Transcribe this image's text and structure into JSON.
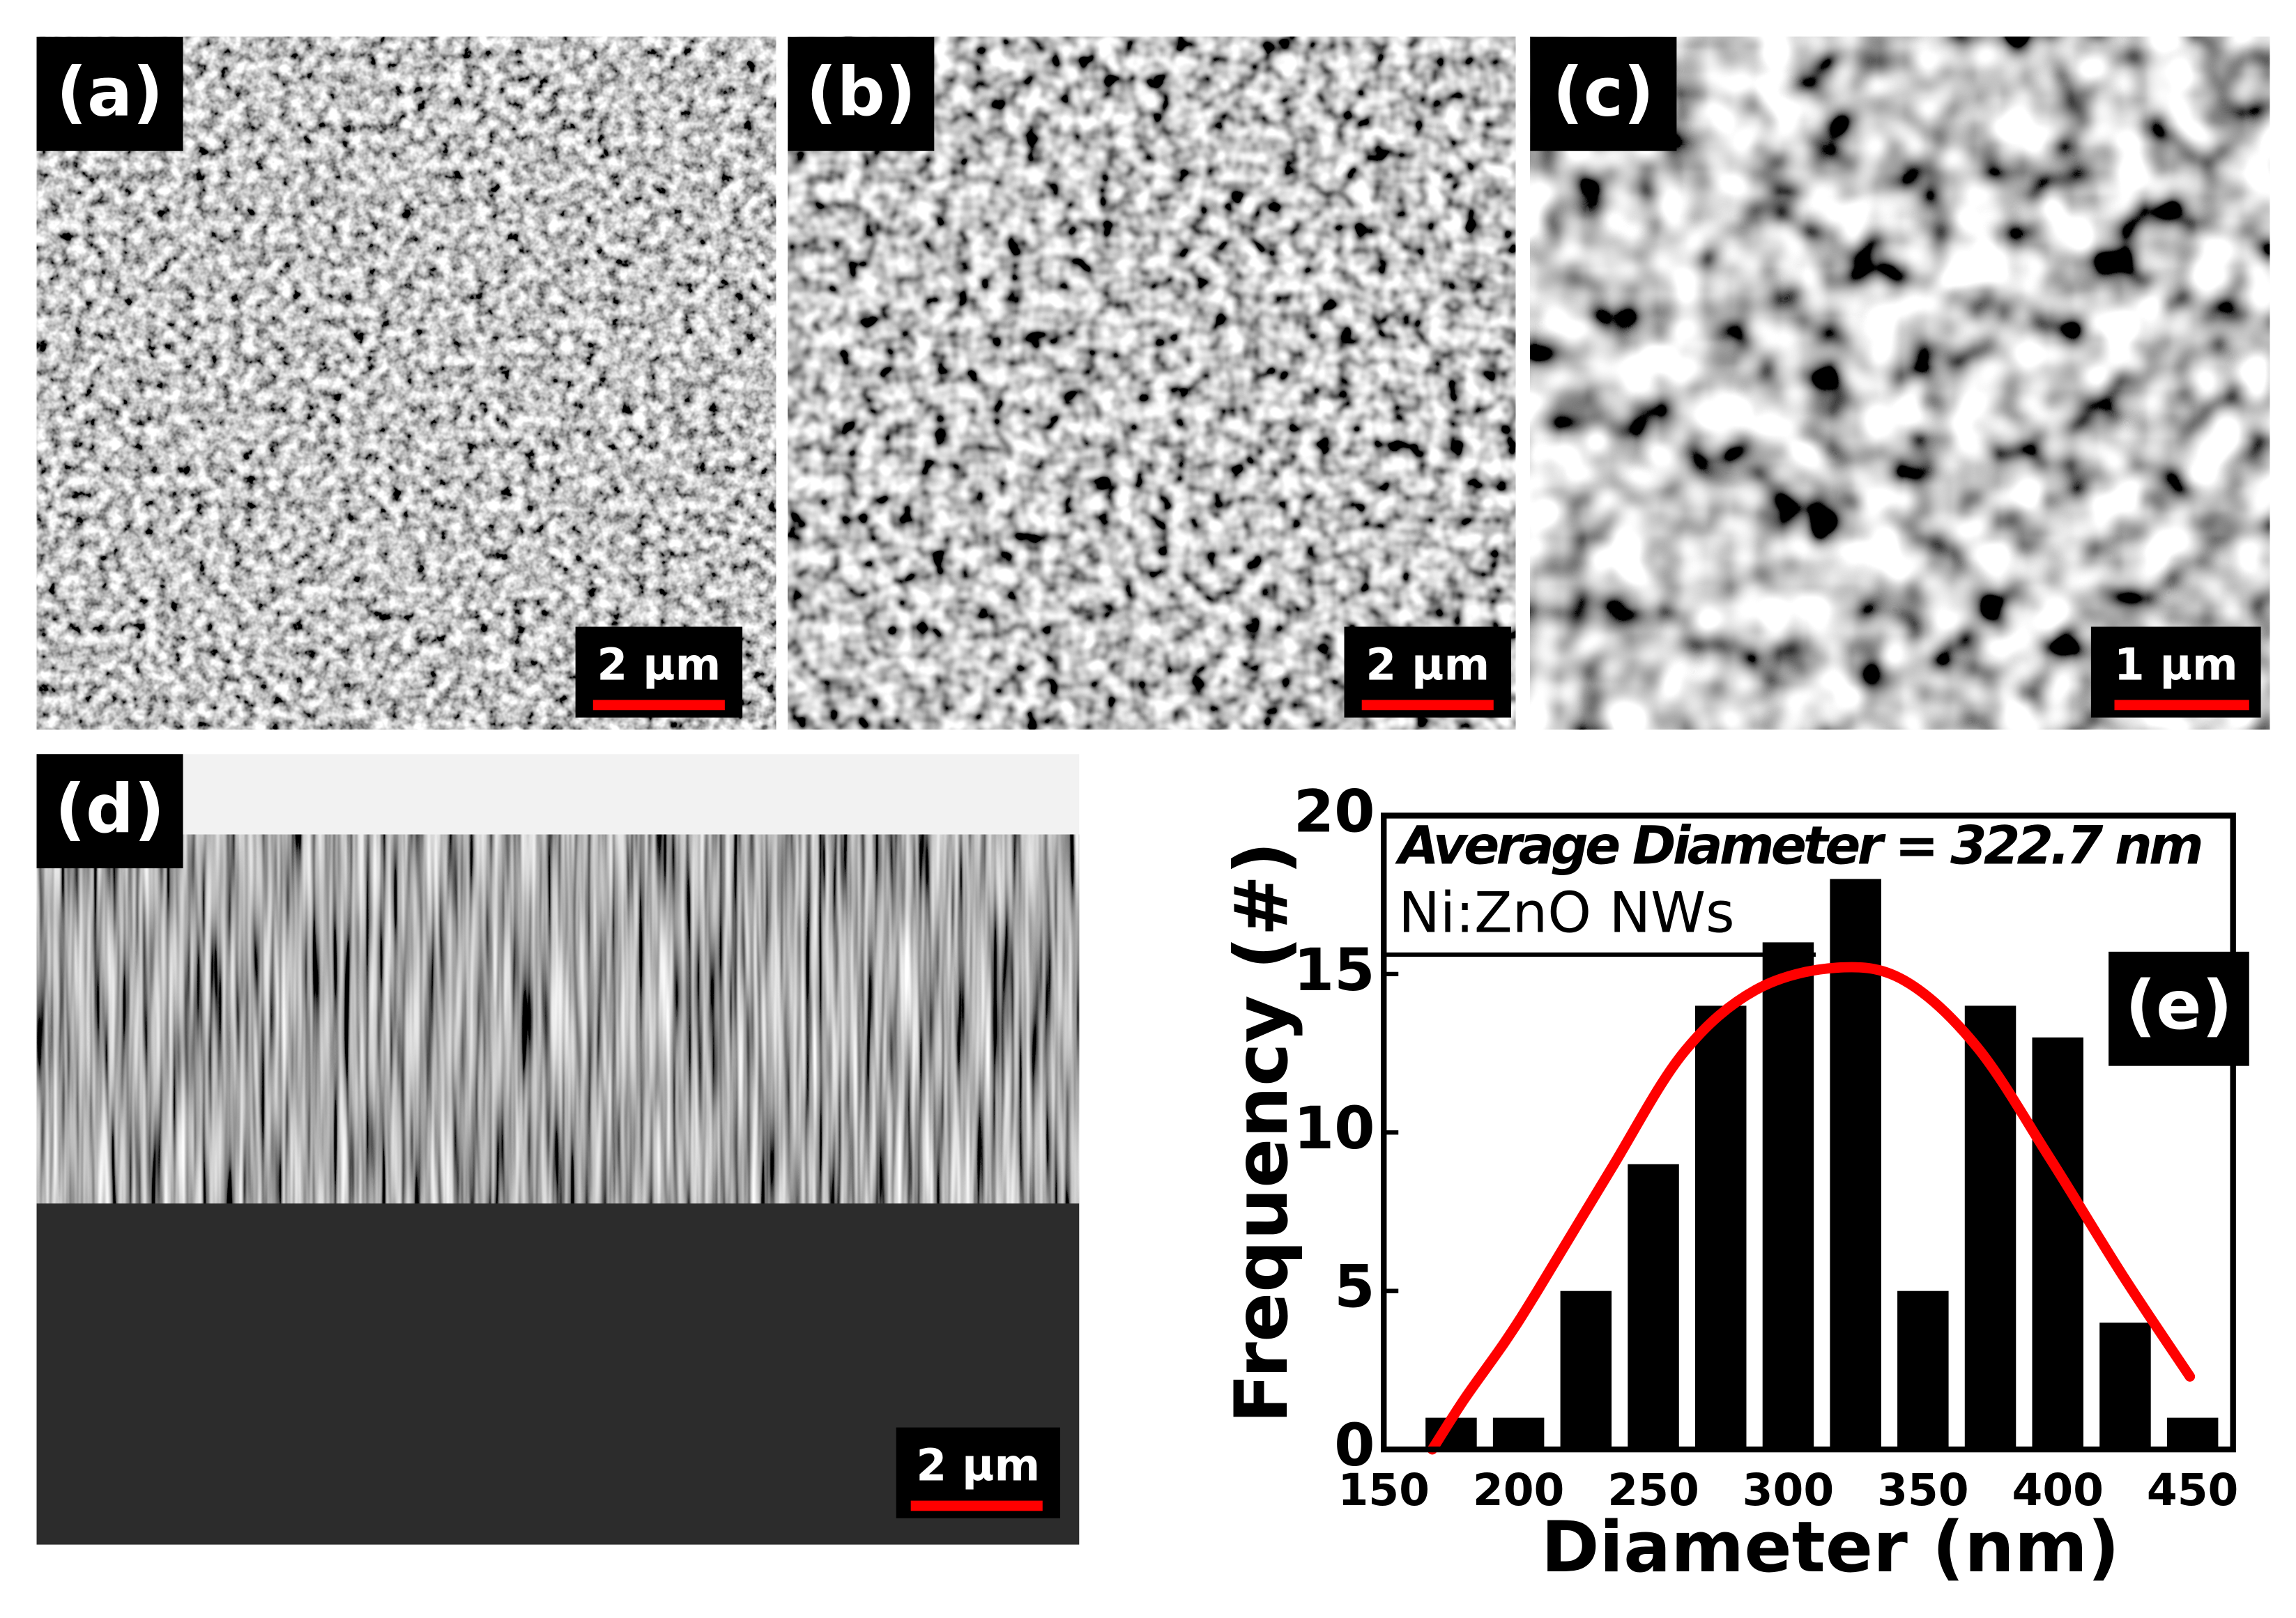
{
  "panels": [
    {
      "label": "(a)",
      "scale_bar": "2 µm"
    },
    {
      "label": "(b)",
      "scale_bar": "2 µm"
    },
    {
      "label": "(c)",
      "scale_bar": "1 µm"
    },
    {
      "label": "(d)",
      "scale_bar": "2 µm"
    }
  ],
  "chart_data": {
    "type": "bar",
    "label": "(e)",
    "x_label": "Diameter (nm)",
    "y_label": "Frequency (#)",
    "annotations": [
      "Average Diameter = 322.7 nm",
      "Ni:ZnO NWs"
    ],
    "x": [
      175,
      200,
      225,
      250,
      275,
      300,
      325,
      350,
      375,
      400,
      425,
      450
    ],
    "values": [
      1,
      1,
      5,
      9,
      14,
      16,
      18,
      5,
      14,
      13,
      4,
      1
    ],
    "color": "#000000",
    "fit": {
      "color": "#ff0000",
      "x": [
        168,
        180,
        195,
        207,
        234,
        261,
        288,
        318,
        343,
        370,
        397,
        424,
        449
      ],
      "values": [
        0,
        1.6,
        3.4,
        5,
        8.8,
        12.5,
        14.5,
        15.2,
        14.8,
        12.7,
        9.2,
        5.5,
        2.3
      ]
    },
    "xlim": [
      150,
      465
    ],
    "ylim": [
      0,
      20
    ],
    "xticks": [
      150,
      200,
      250,
      300,
      350,
      400,
      450
    ],
    "yticks": [
      0,
      5,
      10,
      15,
      20
    ]
  }
}
